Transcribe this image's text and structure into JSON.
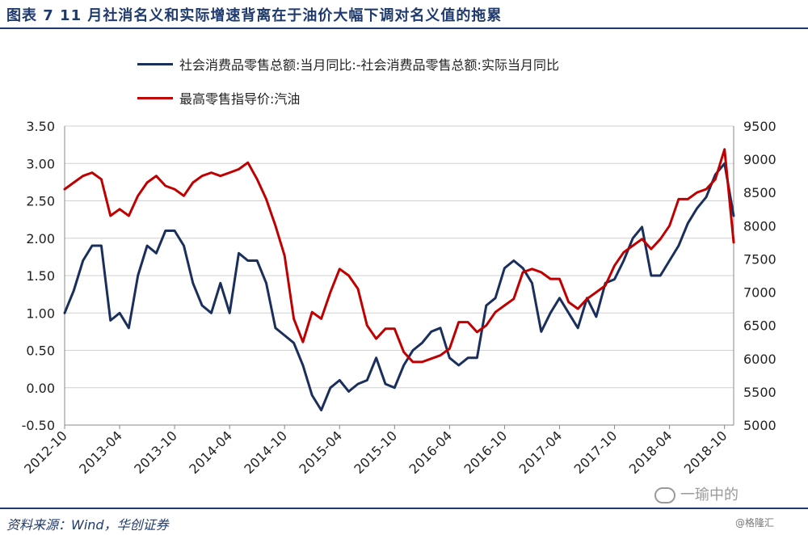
{
  "title": "图表 7   11 月社消名义和实际增速背离在于油价大幅下调对名义值的拖累",
  "source": "资料来源：Wind，华创证券",
  "watermark": "一瑜中的",
  "copyright": "@格隆汇",
  "colors": {
    "series1": "#1a2f5c",
    "series2": "#c00000",
    "title": "#1f3a6e"
  },
  "chart_data": {
    "type": "line",
    "legend_position": "top-left",
    "grid": true,
    "x_ticks": [
      "2012-10",
      "2013-04",
      "2013-10",
      "2014-04",
      "2014-10",
      "2015-04",
      "2015-10",
      "2016-04",
      "2016-10",
      "2017-04",
      "2017-10",
      "2018-04",
      "2018-10"
    ],
    "x_range": [
      "2012-10",
      "2018-11"
    ],
    "y_left": {
      "range": [
        -0.5,
        3.5
      ],
      "ticks": [
        "3.50",
        "3.00",
        "2.50",
        "2.00",
        "1.50",
        "1.00",
        "0.50",
        "0.00",
        "-0.50"
      ]
    },
    "y_right": {
      "range": [
        5000,
        9500
      ],
      "ticks": [
        "9500",
        "9000",
        "8500",
        "8000",
        "7500",
        "7000",
        "6500",
        "6000",
        "5500",
        "5000"
      ]
    },
    "series": [
      {
        "name": "社会消费品零售总额:当月同比:-社会消费品零售总额:实际当月同比",
        "axis": "left",
        "points": [
          [
            "2012-10",
            1.0
          ],
          [
            "2012-11",
            1.3
          ],
          [
            "2012-12",
            1.7
          ],
          [
            "2013-01",
            1.9
          ],
          [
            "2013-02",
            1.9
          ],
          [
            "2013-03",
            0.9
          ],
          [
            "2013-04",
            1.0
          ],
          [
            "2013-05",
            0.8
          ],
          [
            "2013-06",
            1.5
          ],
          [
            "2013-07",
            1.9
          ],
          [
            "2013-08",
            1.8
          ],
          [
            "2013-09",
            2.1
          ],
          [
            "2013-10",
            2.1
          ],
          [
            "2013-11",
            1.9
          ],
          [
            "2013-12",
            1.4
          ],
          [
            "2014-01",
            1.1
          ],
          [
            "2014-02",
            1.0
          ],
          [
            "2014-03",
            1.4
          ],
          [
            "2014-04",
            1.0
          ],
          [
            "2014-05",
            1.8
          ],
          [
            "2014-06",
            1.7
          ],
          [
            "2014-07",
            1.7
          ],
          [
            "2014-08",
            1.4
          ],
          [
            "2014-09",
            0.8
          ],
          [
            "2014-10",
            0.7
          ],
          [
            "2014-11",
            0.6
          ],
          [
            "2014-12",
            0.3
          ],
          [
            "2015-01",
            -0.1
          ],
          [
            "2015-02",
            -0.3
          ],
          [
            "2015-03",
            0.0
          ],
          [
            "2015-04",
            0.1
          ],
          [
            "2015-05",
            -0.05
          ],
          [
            "2015-06",
            0.05
          ],
          [
            "2015-07",
            0.1
          ],
          [
            "2015-08",
            0.4
          ],
          [
            "2015-09",
            0.05
          ],
          [
            "2015-10",
            0.0
          ],
          [
            "2015-11",
            0.3
          ],
          [
            "2015-12",
            0.5
          ],
          [
            "2016-01",
            0.6
          ],
          [
            "2016-02",
            0.75
          ],
          [
            "2016-03",
            0.8
          ],
          [
            "2016-04",
            0.4
          ],
          [
            "2016-05",
            0.3
          ],
          [
            "2016-06",
            0.4
          ],
          [
            "2016-07",
            0.4
          ],
          [
            "2016-08",
            1.1
          ],
          [
            "2016-09",
            1.2
          ],
          [
            "2016-10",
            1.6
          ],
          [
            "2016-11",
            1.7
          ],
          [
            "2016-12",
            1.6
          ],
          [
            "2017-01",
            1.4
          ],
          [
            "2017-02",
            0.75
          ],
          [
            "2017-03",
            1.0
          ],
          [
            "2017-04",
            1.2
          ],
          [
            "2017-05",
            1.0
          ],
          [
            "2017-06",
            0.8
          ],
          [
            "2017-07",
            1.2
          ],
          [
            "2017-08",
            0.95
          ],
          [
            "2017-09",
            1.4
          ],
          [
            "2017-10",
            1.45
          ],
          [
            "2017-11",
            1.7
          ],
          [
            "2017-12",
            2.0
          ],
          [
            "2018-01",
            2.15
          ],
          [
            "2018-02",
            1.5
          ],
          [
            "2018-03",
            1.5
          ],
          [
            "2018-04",
            1.7
          ],
          [
            "2018-05",
            1.9
          ],
          [
            "2018-06",
            2.2
          ],
          [
            "2018-07",
            2.4
          ],
          [
            "2018-08",
            2.55
          ],
          [
            "2018-09",
            2.85
          ],
          [
            "2018-10",
            3.0
          ],
          [
            "2018-11",
            2.3
          ]
        ]
      },
      {
        "name": "最高零售指导价:汽油",
        "axis": "right",
        "points": [
          [
            "2012-10",
            8550
          ],
          [
            "2012-11",
            8650
          ],
          [
            "2012-12",
            8750
          ],
          [
            "2013-01",
            8800
          ],
          [
            "2013-02",
            8700
          ],
          [
            "2013-03",
            8150
          ],
          [
            "2013-04",
            8250
          ],
          [
            "2013-05",
            8150
          ],
          [
            "2013-06",
            8450
          ],
          [
            "2013-07",
            8650
          ],
          [
            "2013-08",
            8750
          ],
          [
            "2013-09",
            8600
          ],
          [
            "2013-10",
            8550
          ],
          [
            "2013-11",
            8450
          ],
          [
            "2013-12",
            8650
          ],
          [
            "2014-01",
            8750
          ],
          [
            "2014-02",
            8800
          ],
          [
            "2014-03",
            8750
          ],
          [
            "2014-04",
            8800
          ],
          [
            "2014-05",
            8850
          ],
          [
            "2014-06",
            8950
          ],
          [
            "2014-07",
            8700
          ],
          [
            "2014-08",
            8400
          ],
          [
            "2014-09",
            8000
          ],
          [
            "2014-10",
            7550
          ],
          [
            "2014-11",
            6600
          ],
          [
            "2014-12",
            6250
          ],
          [
            "2015-01",
            6700
          ],
          [
            "2015-02",
            6600
          ],
          [
            "2015-03",
            7000
          ],
          [
            "2015-04",
            7350
          ],
          [
            "2015-05",
            7250
          ],
          [
            "2015-06",
            7050
          ],
          [
            "2015-07",
            6500
          ],
          [
            "2015-08",
            6300
          ],
          [
            "2015-09",
            6450
          ],
          [
            "2015-10",
            6450
          ],
          [
            "2015-11",
            6100
          ],
          [
            "2015-12",
            5950
          ],
          [
            "2016-01",
            5950
          ],
          [
            "2016-02",
            6000
          ],
          [
            "2016-03",
            6050
          ],
          [
            "2016-04",
            6150
          ],
          [
            "2016-05",
            6550
          ],
          [
            "2016-06",
            6550
          ],
          [
            "2016-07",
            6400
          ],
          [
            "2016-08",
            6500
          ],
          [
            "2016-09",
            6700
          ],
          [
            "2016-10",
            6800
          ],
          [
            "2016-11",
            6900
          ],
          [
            "2016-12",
            7300
          ],
          [
            "2017-01",
            7350
          ],
          [
            "2017-02",
            7300
          ],
          [
            "2017-03",
            7200
          ],
          [
            "2017-04",
            7200
          ],
          [
            "2017-05",
            6850
          ],
          [
            "2017-06",
            6750
          ],
          [
            "2017-07",
            6900
          ],
          [
            "2017-08",
            7000
          ],
          [
            "2017-09",
            7100
          ],
          [
            "2017-10",
            7400
          ],
          [
            "2017-11",
            7600
          ],
          [
            "2017-12",
            7700
          ],
          [
            "2018-01",
            7800
          ],
          [
            "2018-02",
            7650
          ],
          [
            "2018-03",
            7800
          ],
          [
            "2018-04",
            8000
          ],
          [
            "2018-05",
            8400
          ],
          [
            "2018-06",
            8400
          ],
          [
            "2018-07",
            8500
          ],
          [
            "2018-08",
            8550
          ],
          [
            "2018-09",
            8700
          ],
          [
            "2018-10",
            9150
          ],
          [
            "2018-11",
            7750
          ]
        ]
      }
    ]
  }
}
